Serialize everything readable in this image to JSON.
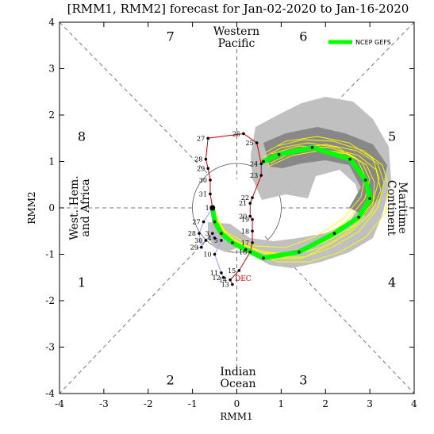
{
  "chart_data": {
    "type": "scatter",
    "title": "[RMM1, RMM2] forecast for Jan-02-2020 to Jan-16-2020",
    "xlabel": "RMM1",
    "ylabel": "RMM2",
    "xlim": [
      -4,
      4
    ],
    "ylim": [
      -4,
      4
    ],
    "x_ticks": [
      "-4",
      "-3",
      "-2",
      "-1",
      "0",
      "1",
      "2",
      "3",
      "4"
    ],
    "y_ticks": [
      "-4",
      "-3",
      "-2",
      "-1",
      "0",
      "1",
      "2",
      "3",
      "4"
    ],
    "phases": [
      {
        "label": "1",
        "x": -3.5,
        "y": -1.6
      },
      {
        "label": "2",
        "x": -1.5,
        "y": -3.7
      },
      {
        "label": "3",
        "x": 1.5,
        "y": -3.7
      },
      {
        "label": "4",
        "x": 3.5,
        "y": -1.6
      },
      {
        "label": "5",
        "x": 3.5,
        "y": 1.55
      },
      {
        "label": "6",
        "x": 1.5,
        "y": 3.7
      },
      {
        "label": "7",
        "x": -1.5,
        "y": 3.7
      },
      {
        "label": "8",
        "x": -3.5,
        "y": 1.55
      }
    ],
    "regions": {
      "western_pacific": [
        "Western",
        "Pacific"
      ],
      "indian_ocean": [
        "Indian",
        "Ocean"
      ],
      "west_hem": [
        "West. Hem.",
        "and Africa"
      ],
      "maritime": [
        "Maritime",
        "Continent"
      ]
    },
    "month_label": "DEC",
    "legend": [
      {
        "name": "NCEP GEFS",
        "color": "#00ff00"
      }
    ],
    "colors": {
      "spread_outer": "#c0c0c0",
      "spread_inner": "#808080",
      "members": "#ffff00",
      "ensemble_mean": "#00ff00",
      "observed_dec": "#cc0000",
      "observed_jan": "#9999ff"
    },
    "observed_dec": [
      {
        "day": "13",
        "x": -0.1,
        "y": -1.65
      },
      {
        "day": "14",
        "x": -0.15,
        "y": -1.55
      },
      {
        "day": "15",
        "x": 0.05,
        "y": -1.35
      },
      {
        "day": "16",
        "x": 0.3,
        "y": -0.95
      },
      {
        "day": "17",
        "x": 0.35,
        "y": -0.75
      },
      {
        "day": "18",
        "x": 0.35,
        "y": -0.5
      },
      {
        "day": "19",
        "x": 0.35,
        "y": -0.25
      },
      {
        "day": "20",
        "x": 0.3,
        "y": -0.18
      },
      {
        "day": "21",
        "x": 0.3,
        "y": 0.1
      },
      {
        "day": "22",
        "x": 0.35,
        "y": 0.22
      },
      {
        "day": "23",
        "x": 0.55,
        "y": 0.7
      },
      {
        "day": "24",
        "x": 0.55,
        "y": 0.95
      },
      {
        "day": "25",
        "x": 0.45,
        "y": 1.4
      },
      {
        "day": "26",
        "x": 0.15,
        "y": 1.6
      },
      {
        "day": "27",
        "x": -0.65,
        "y": 1.5
      },
      {
        "day": "28",
        "x": -0.7,
        "y": 1.05
      },
      {
        "day": "29",
        "x": -0.65,
        "y": 0.85
      },
      {
        "day": "30",
        "x": -0.6,
        "y": 0.6
      },
      {
        "day": "31",
        "x": -0.6,
        "y": 0.3
      },
      {
        "day": "1",
        "x": -0.55,
        "y": 0.0
      }
    ],
    "observed_jan": [
      {
        "day": "27",
        "x": -0.75,
        "y": -0.3
      },
      {
        "day": "28",
        "x": -0.85,
        "y": -0.55
      },
      {
        "day": "29",
        "x": -0.8,
        "y": -0.85
      },
      {
        "day": "30",
        "x": -0.7,
        "y": -0.7
      },
      {
        "day": "3",
        "x": -0.55,
        "y": -0.55
      },
      {
        "day": "4",
        "x": -0.5,
        "y": -0.65
      },
      {
        "day": "5",
        "x": -0.35,
        "y": -0.7
      },
      {
        "day": "10",
        "x": -0.5,
        "y": -1.0
      },
      {
        "day": "11",
        "x": -0.35,
        "y": -1.4
      },
      {
        "day": "12",
        "x": -0.3,
        "y": -1.5
      }
    ],
    "ensemble_mean": [
      {
        "x": -0.55,
        "y": 0.0
      },
      {
        "x": -0.5,
        "y": -0.3
      },
      {
        "x": -0.35,
        "y": -0.55
      },
      {
        "x": -0.1,
        "y": -0.75
      },
      {
        "x": 0.2,
        "y": -0.9
      },
      {
        "x": 0.6,
        "y": -1.08
      },
      {
        "x": 1.4,
        "y": -0.95
      },
      {
        "x": 2.2,
        "y": -0.55
      },
      {
        "x": 2.75,
        "y": -0.2
      },
      {
        "x": 3.0,
        "y": 0.2
      },
      {
        "x": 2.9,
        "y": 0.6
      },
      {
        "x": 2.55,
        "y": 1.05
      },
      {
        "x": 1.7,
        "y": 1.3
      },
      {
        "x": 0.95,
        "y": 1.15
      },
      {
        "x": 0.6,
        "y": 1.0
      }
    ]
  }
}
